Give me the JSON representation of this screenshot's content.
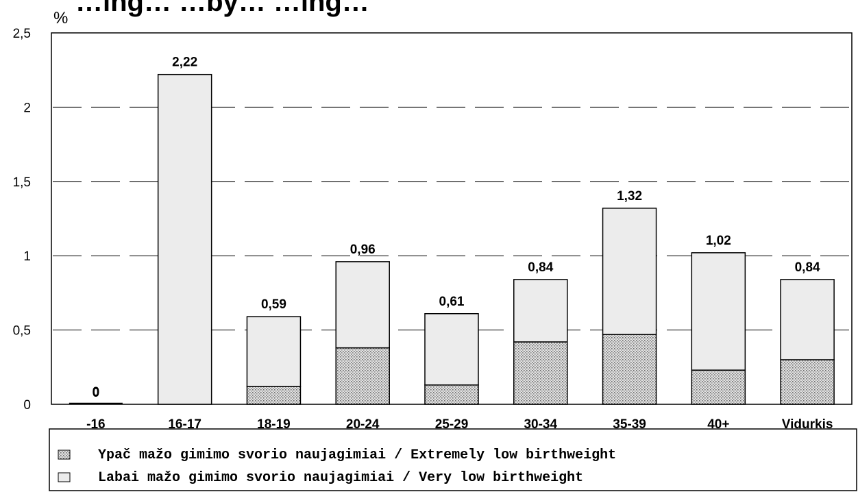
{
  "chart_data": {
    "type": "bar",
    "stacked": true,
    "title": "…ing… …by… …ing…",
    "unit_label": "%",
    "categories": [
      "-16",
      "16-17",
      "18-19",
      "20-24",
      "25-29",
      "30-34",
      "35-39",
      "40+",
      "Vidurkis"
    ],
    "series": [
      {
        "name": "Ypač mažo gimimo svorio naujagimiai / Extremely low birthweight",
        "values": [
          0,
          0,
          0.12,
          0.38,
          0.13,
          0.42,
          0.47,
          0.23,
          0.3
        ],
        "pattern": "dotted"
      },
      {
        "name": "Labai mažo gimimo svorio naujagimiai / Very low birthweight",
        "values": [
          0,
          2.22,
          0.47,
          0.58,
          0.48,
          0.42,
          0.85,
          0.79,
          0.54
        ],
        "pattern": "plain"
      }
    ],
    "totals_labels": [
      "0",
      "2,22",
      "0,59",
      "0,96",
      "0,61",
      "0,84",
      "1,32",
      "1,02",
      "0,84"
    ],
    "extra_label_first_bar": "0",
    "ylim": [
      0,
      2.5
    ],
    "yticks": [
      "0",
      "0,5",
      "1",
      "1,5",
      "2",
      "2,5"
    ],
    "ytick_values": [
      0,
      0.5,
      1,
      1.5,
      2,
      2.5
    ],
    "grid": "dashed-horizontal",
    "legend_position": "bottom",
    "colors": {
      "plain": "#ececec",
      "dotted_fill": "#cfcfcf",
      "stroke": "#000000"
    }
  }
}
